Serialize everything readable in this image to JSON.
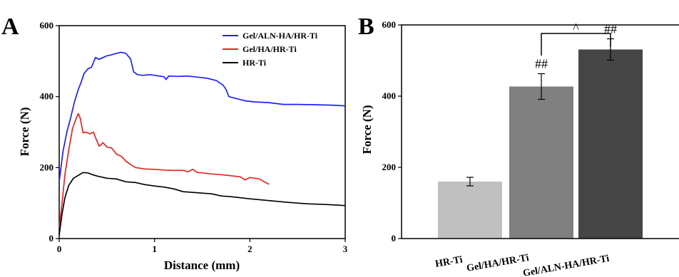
{
  "chart_data": [
    {
      "panel": "A",
      "type": "line",
      "title": "",
      "xlabel": "Distance (mm)",
      "ylabel": "Force (N)",
      "xlim": [
        0,
        3
      ],
      "ylim": [
        0,
        600
      ],
      "xticks": [
        "0",
        "1",
        "2",
        "3"
      ],
      "yticks": [
        "0",
        "200",
        "400",
        "600"
      ],
      "legend": {
        "placement": "top-right"
      },
      "series": [
        {
          "name": "Gel/ALN-HA/HR-Ti",
          "color": "#1f1fff",
          "points": [
            [
              0,
              160
            ],
            [
              0.04,
              245
            ],
            [
              0.08,
              300
            ],
            [
              0.12,
              340
            ],
            [
              0.16,
              385
            ],
            [
              0.2,
              420
            ],
            [
              0.23,
              440
            ],
            [
              0.26,
              465
            ],
            [
              0.3,
              478
            ],
            [
              0.34,
              483
            ],
            [
              0.38,
              510
            ],
            [
              0.42,
              505
            ],
            [
              0.46,
              510
            ],
            [
              0.5,
              515
            ],
            [
              0.55,
              518
            ],
            [
              0.6,
              522
            ],
            [
              0.65,
              525
            ],
            [
              0.7,
              522
            ],
            [
              0.75,
              505
            ],
            [
              0.78,
              470
            ],
            [
              0.82,
              462
            ],
            [
              0.88,
              460
            ],
            [
              0.95,
              462
            ],
            [
              1.0,
              460
            ],
            [
              1.1,
              456
            ],
            [
              1.12,
              448
            ],
            [
              1.15,
              458
            ],
            [
              1.25,
              457
            ],
            [
              1.35,
              458
            ],
            [
              1.45,
              455
            ],
            [
              1.55,
              452
            ],
            [
              1.65,
              445
            ],
            [
              1.72,
              432
            ],
            [
              1.75,
              420
            ],
            [
              1.78,
              400
            ],
            [
              1.85,
              395
            ],
            [
              1.95,
              388
            ],
            [
              2.05,
              385
            ],
            [
              2.2,
              383
            ],
            [
              2.35,
              378
            ],
            [
              2.5,
              378
            ],
            [
              2.7,
              377
            ],
            [
              2.85,
              376
            ],
            [
              3.0,
              374
            ]
          ]
        },
        {
          "name": "Gel/HA/HR-Ti",
          "color": "#e8231f",
          "points": [
            [
              0,
              30
            ],
            [
              0.03,
              100
            ],
            [
              0.06,
              180
            ],
            [
              0.1,
              250
            ],
            [
              0.14,
              310
            ],
            [
              0.18,
              340
            ],
            [
              0.2,
              352
            ],
            [
              0.22,
              340
            ],
            [
              0.25,
              298
            ],
            [
              0.28,
              300
            ],
            [
              0.32,
              295
            ],
            [
              0.36,
              300
            ],
            [
              0.38,
              285
            ],
            [
              0.42,
              260
            ],
            [
              0.46,
              270
            ],
            [
              0.5,
              258
            ],
            [
              0.55,
              255
            ],
            [
              0.6,
              238
            ],
            [
              0.65,
              232
            ],
            [
              0.7,
              218
            ],
            [
              0.75,
              208
            ],
            [
              0.8,
              200
            ],
            [
              0.9,
              196
            ],
            [
              1.0,
              195
            ],
            [
              1.1,
              193
            ],
            [
              1.2,
              192
            ],
            [
              1.3,
              192
            ],
            [
              1.35,
              188
            ],
            [
              1.4,
              195
            ],
            [
              1.45,
              186
            ],
            [
              1.5,
              185
            ],
            [
              1.6,
              182
            ],
            [
              1.7,
              180
            ],
            [
              1.8,
              177
            ],
            [
              1.9,
              174
            ],
            [
              1.95,
              165
            ],
            [
              2.0,
              172
            ],
            [
              2.05,
              170
            ],
            [
              2.1,
              168
            ],
            [
              2.15,
              160
            ],
            [
              2.2,
              153
            ]
          ]
        },
        {
          "name": "HR-Ti",
          "color": "#000000",
          "points": [
            [
              0,
              10
            ],
            [
              0.03,
              70
            ],
            [
              0.06,
              115
            ],
            [
              0.1,
              150
            ],
            [
              0.15,
              170
            ],
            [
              0.2,
              178
            ],
            [
              0.25,
              186
            ],
            [
              0.3,
              185
            ],
            [
              0.35,
              180
            ],
            [
              0.4,
              176
            ],
            [
              0.5,
              170
            ],
            [
              0.6,
              168
            ],
            [
              0.7,
              160
            ],
            [
              0.8,
              158
            ],
            [
              0.9,
              152
            ],
            [
              1.0,
              148
            ],
            [
              1.1,
              145
            ],
            [
              1.2,
              140
            ],
            [
              1.3,
              132
            ],
            [
              1.4,
              130
            ],
            [
              1.5,
              128
            ],
            [
              1.6,
              126
            ],
            [
              1.7,
              120
            ],
            [
              1.8,
              118
            ],
            [
              1.9,
              115
            ],
            [
              2.0,
              112
            ],
            [
              2.2,
              107
            ],
            [
              2.4,
              102
            ],
            [
              2.6,
              98
            ],
            [
              2.8,
              96
            ],
            [
              3.0,
              93
            ]
          ]
        }
      ]
    },
    {
      "panel": "B",
      "type": "bar",
      "title": "",
      "xlabel": "",
      "ylabel": "Force (N)",
      "ylim": [
        0,
        600
      ],
      "yticks": [
        "0",
        "200",
        "400",
        "600"
      ],
      "categories": [
        "HR-Ti",
        "Gel/HA/HR-Ti",
        "Gel/ALN-HA/HR-Ti"
      ],
      "values": [
        160,
        427,
        531
      ],
      "errors": [
        12,
        36,
        30
      ],
      "colors": [
        "#c0c0c0",
        "#808080",
        "#464646"
      ],
      "bar_annotations": [
        "",
        "##",
        "##"
      ],
      "comparison": {
        "from": 1,
        "to": 2,
        "label": "^"
      }
    }
  ]
}
